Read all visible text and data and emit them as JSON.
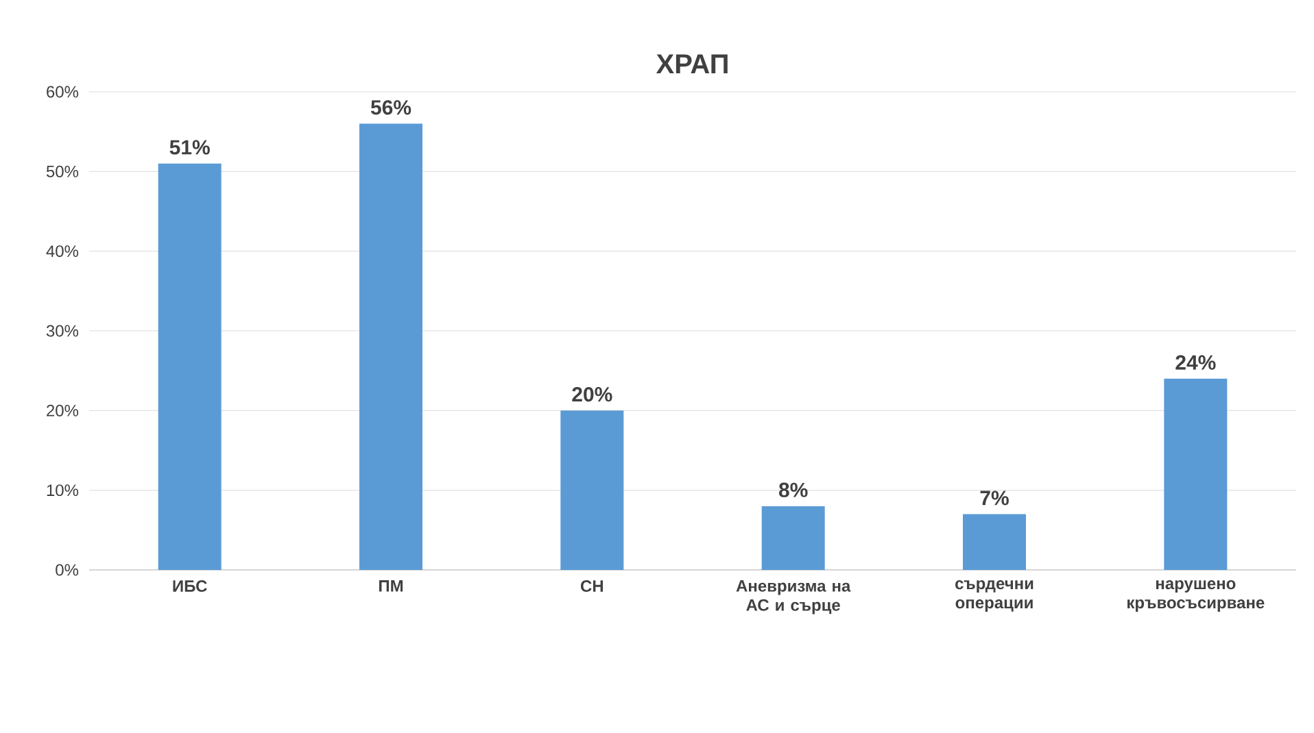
{
  "chart_data": {
    "type": "bar",
    "title": "ХРАП",
    "categories": [
      "ИБС",
      "ПМ",
      "СН",
      "Аневризма на АС и сърце",
      "сърдечни операции",
      "нарушено кръвосъсирване"
    ],
    "values": [
      51,
      56,
      20,
      8,
      7,
      24
    ],
    "value_labels": [
      "51%",
      "56%",
      "20%",
      "8%",
      "7%",
      "24%"
    ],
    "color": "#5b9bd5",
    "ylim": [
      0,
      60
    ],
    "yticks": [
      {
        "value": 0,
        "label": "0%"
      },
      {
        "value": 10,
        "label": "10%"
      },
      {
        "value": 20,
        "label": "20%"
      },
      {
        "value": 30,
        "label": "30%"
      },
      {
        "value": 40,
        "label": "40%"
      },
      {
        "value": 50,
        "label": "50%"
      },
      {
        "value": 60,
        "label": "60%"
      }
    ],
    "grid": "y"
  }
}
